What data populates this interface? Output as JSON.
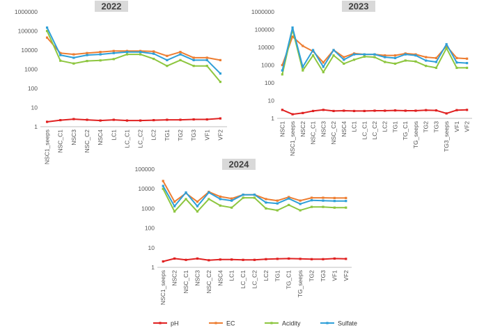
{
  "colors": {
    "pH": "#e02020",
    "EC": "#ed7d31",
    "Acidity": "#8dc63f",
    "Sulfate": "#2e9fd8"
  },
  "legend": [
    {
      "series": "pH",
      "label": "pH"
    },
    {
      "series": "EC",
      "label": "EC"
    },
    {
      "series": "Acidity",
      "label": "Acidity"
    },
    {
      "series": "Sulfate",
      "label": "Sulfate"
    }
  ],
  "chart_data": [
    {
      "type": "line",
      "title": "2022",
      "yscale": "log",
      "ylim": [
        1,
        1000000
      ],
      "yticks": [
        "1",
        "10",
        "100",
        "1000",
        "10000",
        "100000",
        "1000000"
      ],
      "categories": [
        "NSC1_seeps",
        "NSC_C1",
        "NSC3",
        "NSC_C2",
        "NSC4",
        "LC1",
        "LC_C1",
        "LC_C2",
        "LC2",
        "TG1",
        "TG2",
        "TG3",
        "VF1",
        "VF2"
      ],
      "series": [
        {
          "name": "pH",
          "values": [
            1.8,
            2.2,
            2.5,
            2.3,
            2.1,
            2.3,
            2.1,
            2.1,
            2.2,
            2.3,
            2.3,
            2.4,
            2.4,
            2.7
          ]
        },
        {
          "name": "EC",
          "values": [
            45000,
            7000,
            6000,
            7000,
            8000,
            9000,
            9000,
            9000,
            8500,
            5000,
            8000,
            4000,
            4000,
            3000
          ]
        },
        {
          "name": "Acidity",
          "values": [
            100000,
            2800,
            2000,
            2700,
            2900,
            3400,
            6000,
            6000,
            3500,
            1500,
            3000,
            1500,
            1500,
            220
          ]
        },
        {
          "name": "Sulfate",
          "values": [
            150000,
            5500,
            4000,
            5500,
            6000,
            7000,
            8000,
            8000,
            6500,
            3000,
            6000,
            3000,
            3000,
            600
          ]
        }
      ]
    },
    {
      "type": "line",
      "title": "2023",
      "yscale": "log",
      "ylim": [
        1,
        1000000
      ],
      "yticks": [
        "1",
        "10",
        "100",
        "1000",
        "10000",
        "100000",
        "1000000"
      ],
      "categories": [
        "NSC1",
        "NSC1_seeps",
        "NSC2",
        "NSC_C1",
        "NSC3",
        "NSC_C2",
        "NSC4",
        "LC1",
        "LC_C1",
        "LC_C2",
        "LC2",
        "TG1",
        "TG_C1",
        "TG_seeps",
        "TG2",
        "TG3",
        "TG3_seeps",
        "VF1",
        "VF2"
      ],
      "series": [
        {
          "name": "pH",
          "values": [
            3,
            1.7,
            2,
            2.6,
            3,
            2.6,
            2.7,
            2.6,
            2.6,
            2.7,
            2.7,
            2.8,
            2.7,
            2.7,
            2.9,
            2.8,
            1.9,
            2.9,
            3
          ]
        },
        {
          "name": "EC",
          "values": [
            1000,
            40000,
            12000,
            6000,
            1400,
            7000,
            2800,
            4500,
            4000,
            4000,
            3500,
            3500,
            4500,
            4000,
            2800,
            2500,
            12000,
            2500,
            2300
          ]
        },
        {
          "name": "Acidity",
          "values": [
            300,
            100000,
            500,
            3500,
            400,
            3500,
            1200,
            2000,
            3000,
            2800,
            1500,
            1200,
            1800,
            1600,
            900,
            700,
            9000,
            700,
            700
          ]
        },
        {
          "name": "Sulfate",
          "values": [
            500,
            130000,
            800,
            7000,
            800,
            7000,
            2000,
            4000,
            4000,
            4000,
            2800,
            2500,
            4000,
            3500,
            1800,
            1500,
            15000,
            1400,
            1300
          ]
        }
      ]
    },
    {
      "type": "line",
      "title": "2024",
      "yscale": "log",
      "ylim": [
        1,
        100000
      ],
      "yticks": [
        "1",
        "10",
        "100",
        "1000",
        "10000",
        "100000"
      ],
      "categories": [
        "NSC1_seeps",
        "NSC2",
        "NSC_C1",
        "NSC3",
        "NSC_C2",
        "NSC4",
        "LC1",
        "LC_C1",
        "LC_C2",
        "LC2",
        "TG1",
        "TG_C1",
        "TG_seeps",
        "TG2",
        "TG3",
        "VF1",
        "VF2"
      ],
      "series": [
        {
          "name": "pH",
          "values": [
            2,
            2.8,
            2.4,
            2.8,
            2.3,
            2.5,
            2.5,
            2.4,
            2.4,
            2.6,
            2.7,
            2.8,
            2.7,
            2.6,
            2.6,
            2.8,
            2.7
          ]
        },
        {
          "name": "EC",
          "values": [
            25000,
            2200,
            6000,
            2200,
            7000,
            4000,
            3200,
            5000,
            5000,
            3000,
            2500,
            3800,
            2500,
            3500,
            3500,
            3400,
            3400
          ]
        },
        {
          "name": "Acidity",
          "values": [
            10000,
            700,
            3000,
            700,
            3000,
            1400,
            1100,
            3500,
            3500,
            1000,
            800,
            1500,
            800,
            1200,
            1200,
            1100,
            1100
          ]
        },
        {
          "name": "Sulfate",
          "values": [
            14000,
            1300,
            6500,
            1300,
            6500,
            3000,
            2500,
            5000,
            5000,
            2000,
            1800,
            3200,
            1700,
            2600,
            2500,
            2400,
            2400
          ]
        }
      ]
    }
  ]
}
